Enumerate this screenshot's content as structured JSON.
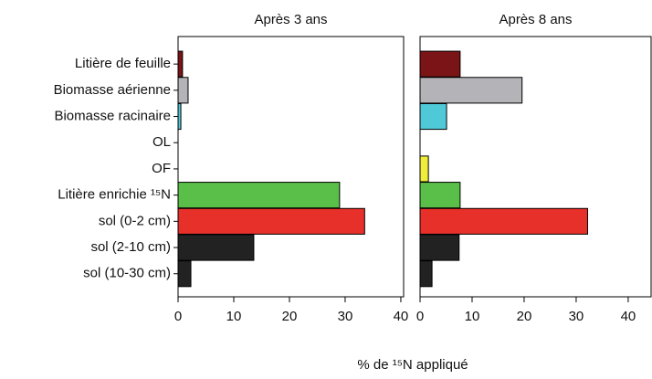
{
  "chart_data": {
    "type": "bar",
    "categories": [
      "Litière de feuille",
      "Biomasse aérienne",
      "Biomasse racinaire",
      "OL",
      "OF",
      "Litière enrichie ¹⁵N",
      "sol (0-2 cm)",
      "sol (2-10 cm)",
      "sol (10-30 cm)"
    ],
    "colors": [
      "#7b1416",
      "#b3b3b8",
      "#4fc8d8",
      "#3050a0",
      "#f0ec3a",
      "#5abf48",
      "#e8302a",
      "#222222",
      "#222222"
    ],
    "xlabel": "% de ¹⁵N appliqué",
    "panels": [
      {
        "title": "Après 3 ans",
        "values": [
          0.8,
          1.8,
          0.5,
          0,
          0,
          29,
          33.5,
          13.6,
          2.3
        ],
        "xlim": [
          0,
          40.5
        ],
        "xticks": [
          0,
          10,
          20,
          30,
          40
        ]
      },
      {
        "title": "Après 8 ans",
        "values": [
          7.7,
          19.6,
          5.1,
          0,
          1.6,
          7.7,
          32.2,
          7.5,
          2.3
        ],
        "xlim": [
          0,
          44.4
        ],
        "xticks": [
          0,
          10,
          20,
          30,
          40
        ]
      }
    ]
  }
}
